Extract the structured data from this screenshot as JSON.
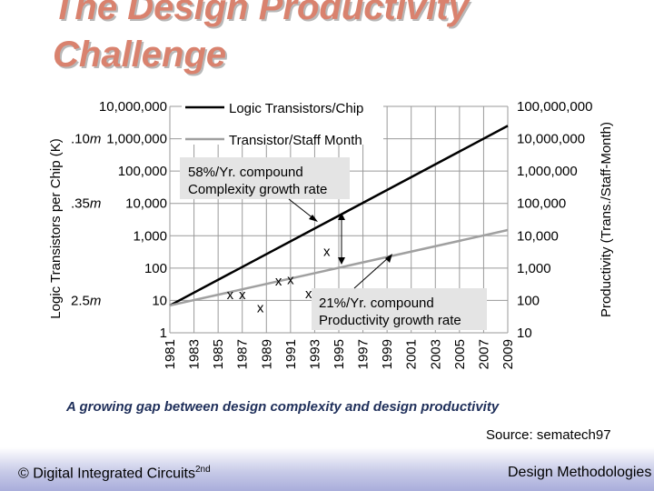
{
  "slide": {
    "title_line1": "The Design Productivity",
    "title_line2": "Challenge",
    "caption": "A growing gap between design complexity and design productivity",
    "source": "Source: sematech97",
    "footer_left": "© Digital Integrated Circuits",
    "footer_left_sup": "2nd",
    "footer_right": "Design Methodologies"
  },
  "chart_data": {
    "type": "line",
    "title": "",
    "xlabel": "",
    "ylabel_left": "Logic Transistors per Chip (K)",
    "ylabel_right": "Productivity (Trans./Staff-Month)",
    "x_ticks": [
      "1981",
      "1983",
      "1985",
      "1987",
      "1989",
      "1991",
      "1993",
      "1995",
      "1997",
      "1999",
      "2001",
      "2003",
      "2005",
      "2007",
      "2009"
    ],
    "xlim": [
      1981,
      2009
    ],
    "y_left_ticks": [
      "1",
      "10",
      "100",
      "1,000",
      "10,000",
      "100,000",
      "1,000,000",
      "10,000,000"
    ],
    "y_left_log_range": [
      0,
      7
    ],
    "y_right_ticks": [
      "10",
      "100",
      "1,000",
      "10,000",
      "100,000",
      "1,000,000",
      "10,000,000",
      "100,000,000"
    ],
    "y_right_log_range": [
      1,
      8
    ],
    "process_labels": [
      {
        "text": ".10",
        "unit": "m",
        "y_log": 6
      },
      {
        "text": ".35",
        "unit": "m",
        "y_log": 4
      },
      {
        "text": "2.5",
        "unit": "m",
        "y_log": 1
      }
    ],
    "series": [
      {
        "name": "Logic Transistors/Chip",
        "color": "#000000",
        "axis": "left",
        "x": [
          1981,
          2009
        ],
        "y": [
          7,
          2500000
        ]
      },
      {
        "name": "Transistor/Staff Month",
        "color": "#a0a0a0",
        "axis": "right",
        "x": [
          1981,
          2009
        ],
        "y": [
          70,
          15000
        ]
      }
    ],
    "x_markers": {
      "symbol": "x",
      "points": [
        {
          "x": 1986,
          "y": 15
        },
        {
          "x": 1987,
          "y": 15
        },
        {
          "x": 1988.5,
          "y": 6
        },
        {
          "x": 1990,
          "y": 40
        },
        {
          "x": 1991,
          "y": 44
        },
        {
          "x": 1992.5,
          "y": 16
        },
        {
          "x": 1994,
          "y": 330
        }
      ]
    },
    "annotations": [
      {
        "line1": "58%/Yr. compound",
        "line2": "Complexity growth rate"
      },
      {
        "line1": "21%/Yr. compound",
        "line2": "Productivity growth rate"
      }
    ]
  }
}
